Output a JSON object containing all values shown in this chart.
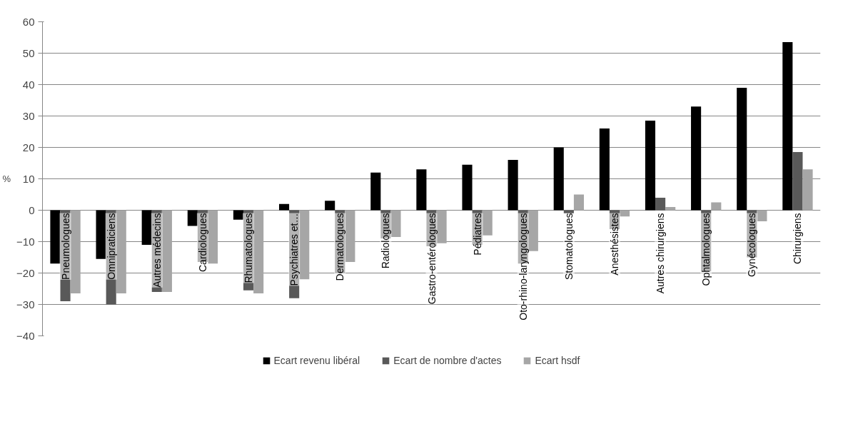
{
  "chart_data": {
    "type": "bar",
    "ylabel": "%",
    "categories": [
      "Pneumologues",
      "Omnipraticiens",
      "Autres médecins",
      "Cardiologues",
      "Rhumatologues",
      "Psychiatres et…",
      "Dermatologues",
      "Radiologues",
      "Gastro-entérologues",
      "Pédiatres",
      "Oto-rhino-laryngologues",
      "Stomatologues",
      "Anesthésistes",
      "Autres chirurgiens",
      "Ophtalmologues",
      "Gynécologues",
      "Chirurgiens"
    ],
    "series": [
      {
        "name": "Ecart revenu libéral",
        "color": "#000000",
        "values": [
          -17,
          -15.5,
          -11,
          -5,
          -3,
          2,
          3,
          12,
          13,
          14.5,
          16,
          20,
          26,
          28.5,
          33,
          39,
          53.5
        ]
      },
      {
        "name": "Ecart de nombre d'actes",
        "color": "#595959",
        "values": [
          -29,
          -30,
          -26,
          -16.5,
          -25.5,
          -28,
          -20,
          -9,
          -11.5,
          -11,
          -17,
          -1,
          -6,
          4,
          -19.5,
          -15,
          18.5
        ]
      },
      {
        "name": "Ecart hsdf",
        "color": "#a6a6a6",
        "values": [
          -26.5,
          -26.5,
          -26,
          -17,
          -26.5,
          -22,
          -16.5,
          -8.5,
          -10.5,
          -8,
          -13,
          5,
          -2,
          1,
          2.5,
          -3.5,
          13
        ]
      }
    ],
    "ylim": [
      -40,
      60
    ],
    "yticks": [
      -40,
      -30,
      -20,
      -10,
      0,
      10,
      20,
      30,
      40,
      50,
      60
    ],
    "grid": "y",
    "legend": "bottom"
  }
}
